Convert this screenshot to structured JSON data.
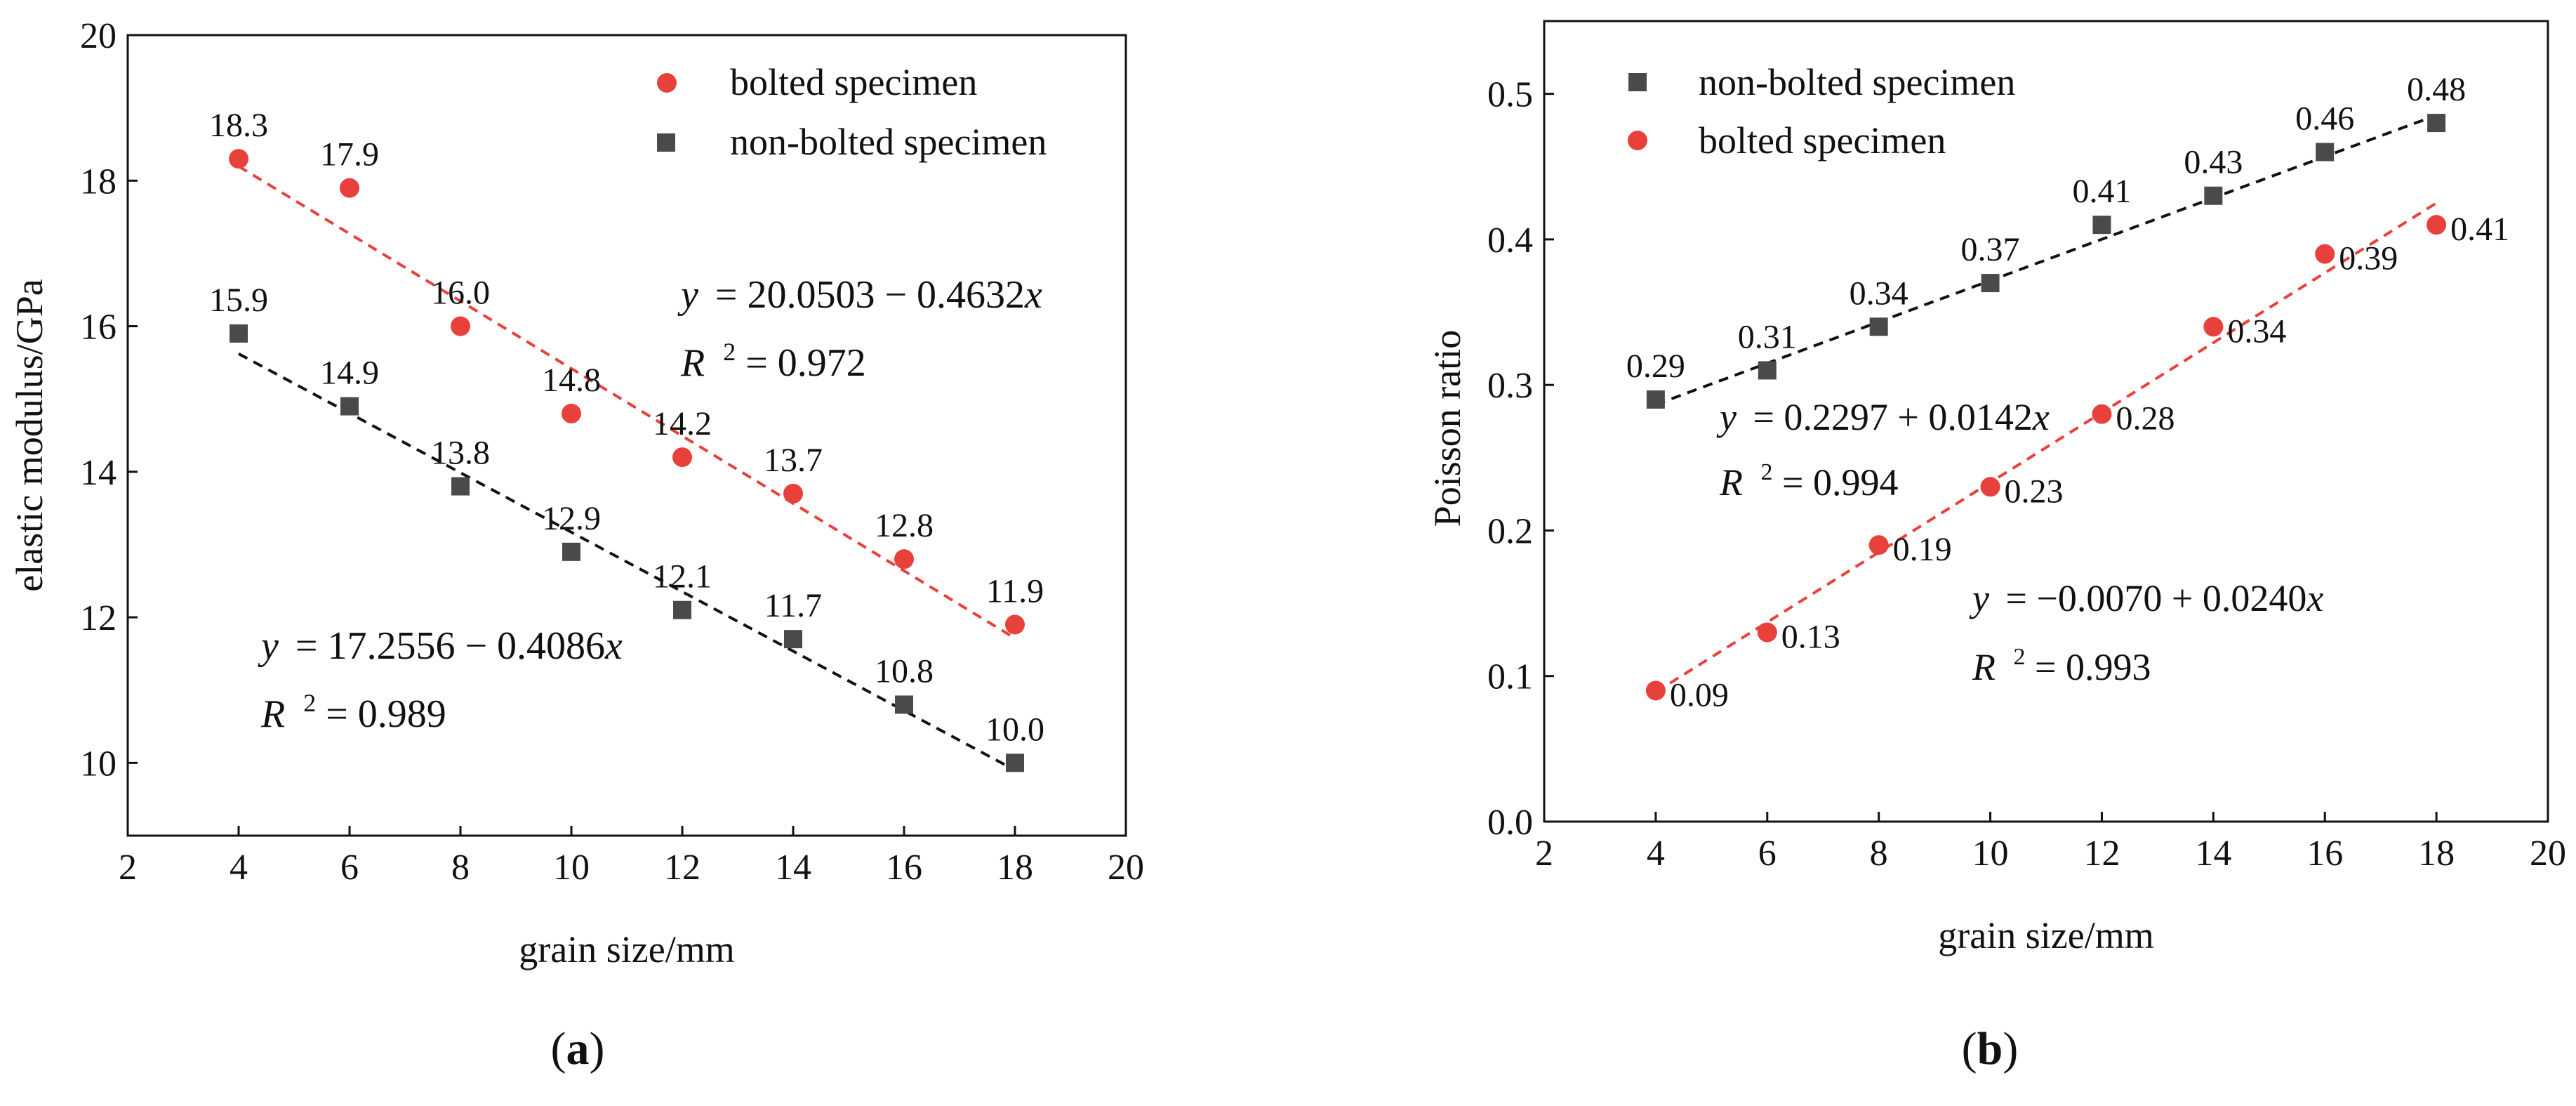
{
  "panels": [
    {
      "panel_label": "a",
      "legend_location": "top-right",
      "equations": [
        {
          "series": "bolted specimen",
          "text_y": "y",
          "text_rhs": "= 20.0503 − 0.4632",
          "text_x": "x",
          "r2_label": "R",
          "r2_exp": "2",
          "r2_value": "= 0.972"
        },
        {
          "series": "non-bolted specimen",
          "text_y": "y",
          "text_rhs": "= 17.2556 − 0.4086",
          "text_x": "x",
          "r2_label": "R",
          "r2_exp": "2",
          "r2_value": "= 0.989"
        }
      ]
    },
    {
      "panel_label": "b",
      "legend_location": "top-left",
      "equations": [
        {
          "series": "non-bolted specimen",
          "text_y": "y",
          "text_rhs": "= 0.2297 + 0.0142",
          "text_x": "x",
          "r2_label": "R",
          "r2_exp": "2",
          "r2_value": "= 0.994"
        },
        {
          "series": "bolted specimen",
          "text_y": "y",
          "text_rhs": "= −0.0070 + 0.0240",
          "text_x": "x",
          "r2_label": "R",
          "r2_exp": "2",
          "r2_value": "= 0.993"
        }
      ]
    }
  ],
  "chart_data": [
    {
      "type": "scatter",
      "title": "",
      "xlabel": "grain size/mm",
      "ylabel": "elastic modulus/GPa",
      "xlim": [
        2,
        20
      ],
      "ylim": [
        9,
        20
      ],
      "xticks": [
        2,
        4,
        6,
        8,
        10,
        12,
        14,
        16,
        18,
        20
      ],
      "yticks": [
        10,
        12,
        14,
        16,
        18,
        20
      ],
      "grid": false,
      "legend": "top-right",
      "x": [
        4,
        6,
        8,
        10,
        12,
        14,
        16,
        18
      ],
      "series": [
        {
          "name": "bolted specimen",
          "marker": "circle",
          "color": "#e8413c",
          "values": [
            18.3,
            17.9,
            16.0,
            14.8,
            14.2,
            13.7,
            12.8,
            11.9
          ],
          "labels": [
            "18.3",
            "17.9",
            "16.0",
            "14.8",
            "14.2",
            "13.7",
            "12.8",
            "11.9"
          ],
          "fit": {
            "intercept": 20.0503,
            "slope": -0.4632,
            "color": "#e8413c"
          }
        },
        {
          "name": "non-bolted specimen",
          "marker": "square",
          "color": "#4a4a4a",
          "values": [
            15.9,
            14.9,
            13.8,
            12.9,
            12.1,
            11.7,
            10.8,
            10.0
          ],
          "labels": [
            "15.9",
            "14.9",
            "13.8",
            "12.9",
            "12.1",
            "11.7",
            "10.8",
            "10.0"
          ],
          "fit": {
            "intercept": 17.2556,
            "slope": -0.4086,
            "color": "#111111"
          }
        }
      ]
    },
    {
      "type": "scatter",
      "title": "",
      "xlabel": "grain size/mm",
      "ylabel": "Poisson ratio",
      "xlim": [
        2,
        20
      ],
      "ylim": [
        0.0,
        0.55
      ],
      "xticks": [
        2,
        4,
        6,
        8,
        10,
        12,
        14,
        16,
        18,
        20
      ],
      "yticks": [
        "0.0",
        "0.1",
        "0.2",
        "0.3",
        "0.4",
        "0.5"
      ],
      "grid": false,
      "legend": "top-left",
      "x": [
        4,
        6,
        8,
        10,
        12,
        14,
        16,
        18
      ],
      "series": [
        {
          "name": "non-bolted specimen",
          "marker": "square",
          "color": "#4a4a4a",
          "values": [
            0.29,
            0.31,
            0.34,
            0.37,
            0.41,
            0.43,
            0.46,
            0.48
          ],
          "labels": [
            "0.29",
            "0.31",
            "0.34",
            "0.37",
            "0.41",
            "0.43",
            "0.46",
            "0.48"
          ],
          "fit": {
            "intercept": 0.2297,
            "slope": 0.0142,
            "color": "#111111"
          }
        },
        {
          "name": "bolted specimen",
          "marker": "circle",
          "color": "#e8413c",
          "values": [
            0.09,
            0.13,
            0.19,
            0.23,
            0.28,
            0.34,
            0.39,
            0.41
          ],
          "labels": [
            "0.09",
            "0.13",
            "0.19",
            "0.23",
            "0.28",
            "0.34",
            "0.39",
            "0.41"
          ],
          "fit": {
            "intercept": -0.007,
            "slope": 0.024,
            "color": "#e8413c"
          }
        }
      ]
    }
  ]
}
